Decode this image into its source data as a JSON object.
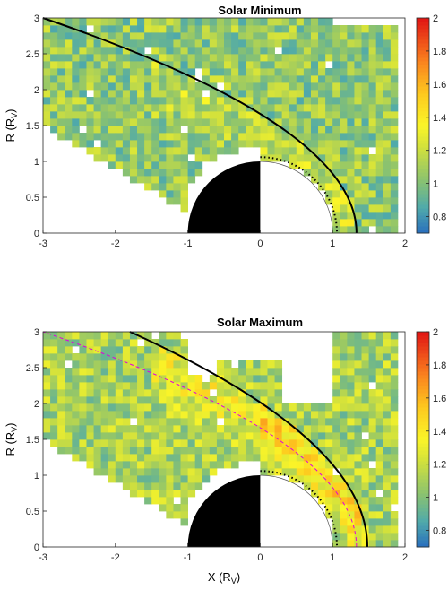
{
  "chart_data": [
    {
      "type": "heatmap",
      "title": "Solar Minimum",
      "xlabel": "",
      "ylabel": "R (R_V)",
      "xlim": [
        -3,
        2
      ],
      "ylim": [
        0,
        3
      ],
      "xticks": [
        "-3",
        "-2",
        "-1",
        "0",
        "1",
        "2"
      ],
      "yticks": [
        "0",
        "0.5",
        "1",
        "1.5",
        "2",
        "2.5",
        "3"
      ],
      "colorbar": {
        "min": 0.7,
        "max": 2.0,
        "ticks": [
          "0.8",
          "1",
          "1.2",
          "1.4",
          "1.6",
          "1.8",
          "2"
        ]
      },
      "bin_size": 0.1,
      "boundaries": {
        "bow_shock": {
          "style": "solid black",
          "nose_x": 1.33,
          "x_at_r3": -3.0
        },
        "ionopause": {
          "style": "dotted black",
          "radius": 1.06
        },
        "planet": {
          "radius": 1.0
        }
      }
    },
    {
      "type": "heatmap",
      "title": "Solar Maximum",
      "xlabel": "X (R_V)",
      "ylabel": "R (R_V)",
      "xlim": [
        -3,
        2
      ],
      "ylim": [
        0,
        3
      ],
      "xticks": [
        "-3",
        "-2",
        "-1",
        "0",
        "1",
        "2"
      ],
      "yticks": [
        "0",
        "0.5",
        "1",
        "1.5",
        "2",
        "2.5",
        "3"
      ],
      "colorbar": {
        "min": 0.7,
        "max": 2.0,
        "ticks": [
          "0.8",
          "1",
          "1.2",
          "1.4",
          "1.6",
          "1.8",
          "2"
        ]
      },
      "bin_size": 0.1,
      "boundaries": {
        "bow_shock": {
          "style": "solid black",
          "nose_x": 1.48,
          "x_at_r3": -1.8
        },
        "bow_shock_reference": {
          "style": "dashed magenta",
          "nose_x": 1.33,
          "x_at_r3": -3.0
        },
        "ionopause": {
          "style": "dotted black",
          "radius": 1.06
        },
        "planet": {
          "radius": 1.0
        }
      }
    }
  ]
}
